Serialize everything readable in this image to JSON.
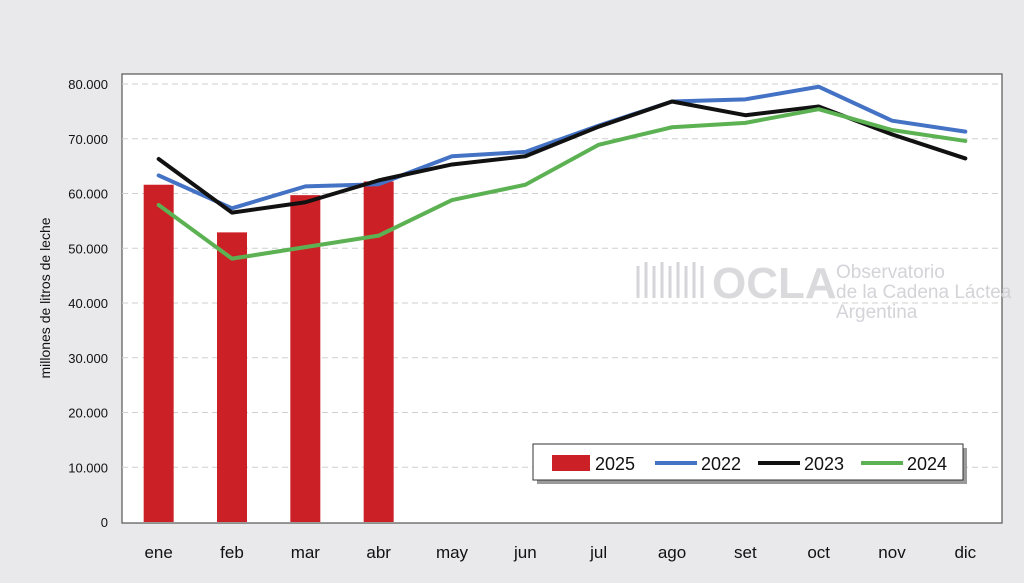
{
  "chart_data": {
    "type": "bar+line",
    "ylabel": "millones de litros de leche",
    "xlabel": "",
    "title": "",
    "ylim": [
      0,
      80000
    ],
    "yticks": [
      0,
      10000,
      20000,
      30000,
      40000,
      50000,
      60000,
      70000,
      80000
    ],
    "ytick_labels": [
      "0",
      "10.000",
      "20.000",
      "30.000",
      "40.000",
      "50.000",
      "60.000",
      "70.000",
      "80.000"
    ],
    "categories": [
      "ene",
      "feb",
      "mar",
      "abr",
      "may",
      "jun",
      "jul",
      "ago",
      "set",
      "oct",
      "nov",
      "dic"
    ],
    "grid": "horizontal dashed",
    "legend_position": "bottom-right",
    "bars": {
      "name": "2025",
      "color": "#cc2027",
      "values": [
        61600,
        52900,
        59700,
        62200
      ]
    },
    "series": [
      {
        "name": "2022",
        "color": "#4472c4",
        "values": [
          63300,
          57300,
          61300,
          61700,
          66800,
          67600,
          72400,
          76800,
          77200,
          79500,
          73300,
          71300
        ]
      },
      {
        "name": "2023",
        "color": "#111111",
        "values": [
          66300,
          56500,
          58400,
          62400,
          65300,
          66800,
          72200,
          76800,
          74300,
          75900,
          70800,
          66400
        ]
      },
      {
        "name": "2024",
        "color": "#5cb253",
        "values": [
          57900,
          48100,
          50200,
          52300,
          58800,
          61600,
          68900,
          72100,
          72900,
          75400,
          71600,
          69600
        ]
      }
    ]
  },
  "watermark": {
    "brand": "OCLA",
    "line1": "Observatorio",
    "line2": "de la Cadena Láctea",
    "line3": "Argentina"
  }
}
